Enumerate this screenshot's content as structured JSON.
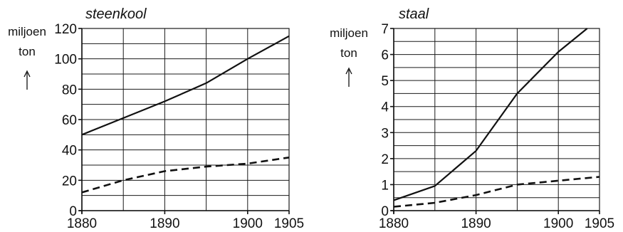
{
  "chart_data": [
    {
      "type": "line",
      "title": "steenkool",
      "ylabel": [
        "miljoen",
        "ton"
      ],
      "xlabel": "",
      "x_ticks": [
        1880,
        1890,
        1900,
        1905
      ],
      "y_ticks": [
        0,
        20,
        40,
        60,
        80,
        100,
        120
      ],
      "xlim": [
        1880,
        1905
      ],
      "ylim": [
        0,
        120
      ],
      "grid": true,
      "series": [
        {
          "style": "solid",
          "x": [
            1880,
            1885,
            1890,
            1895,
            1900,
            1905
          ],
          "values": [
            50,
            61,
            72,
            84,
            100,
            115
          ]
        },
        {
          "style": "dashed",
          "x": [
            1880,
            1885,
            1890,
            1895,
            1900,
            1905
          ],
          "values": [
            12,
            20,
            26,
            29,
            31,
            35
          ]
        }
      ]
    },
    {
      "type": "line",
      "title": "staal",
      "ylabel": [
        "miljoen",
        "ton"
      ],
      "xlabel": "",
      "x_ticks": [
        1880,
        1890,
        1900,
        1905
      ],
      "y_ticks": [
        0,
        1,
        2,
        3,
        4,
        5,
        6,
        7
      ],
      "xlim": [
        1880,
        1905
      ],
      "ylim": [
        0,
        7
      ],
      "grid": true,
      "series": [
        {
          "style": "solid",
          "x": [
            1880,
            1885,
            1890,
            1895,
            1900,
            1903.5
          ],
          "values": [
            0.4,
            0.95,
            2.3,
            4.5,
            6.1,
            7.0
          ]
        },
        {
          "style": "dashed",
          "x": [
            1880,
            1885,
            1890,
            1895,
            1900,
            1905
          ],
          "values": [
            0.15,
            0.3,
            0.6,
            1.0,
            1.15,
            1.3
          ]
        }
      ]
    }
  ]
}
